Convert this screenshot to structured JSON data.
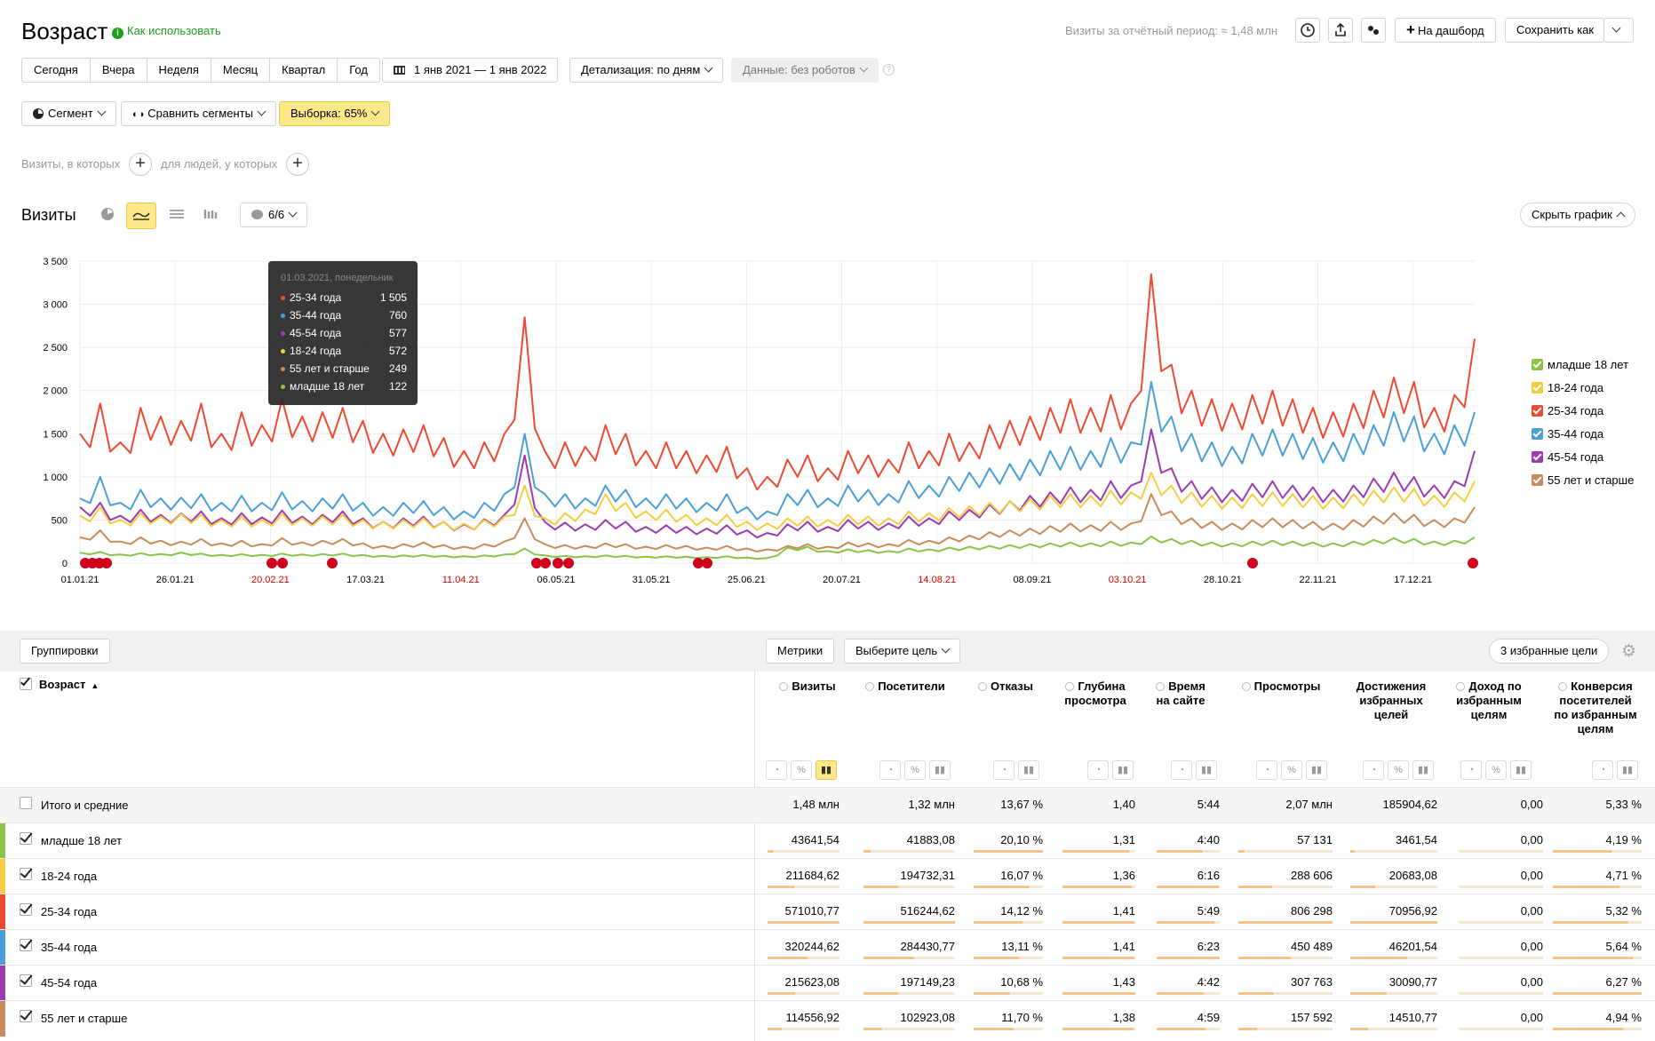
{
  "header": {
    "title": "Возраст",
    "how_to_use": "Как использовать",
    "visits_summary": "Визиты за отчётный период: ≈ 1,48 млн",
    "to_dashboard": "На дашборд",
    "save_as": "Сохранить как"
  },
  "period_tabs": [
    "Сегодня",
    "Вчера",
    "Неделя",
    "Месяц",
    "Квартал",
    "Год"
  ],
  "date_range": "1 янв 2021 — 1 янв 2022",
  "detail": "Детализация: по дням",
  "data_filter": "Данные: без роботов",
  "segment": "Сегмент",
  "compare_segments": "Сравнить сегменты",
  "sample": "Выборка: 65%",
  "filter": {
    "visits_where": "Визиты, в которых",
    "people_where": "для людей, у которых"
  },
  "chart_header": {
    "title": "Визиты",
    "series_count": "6/6",
    "hide_chart": "Скрыть график"
  },
  "colors": {
    "accent": "#fde98a",
    "green": "#1e9e1e"
  },
  "tooltip": {
    "date": "01.03.2021, понедельник",
    "rows": [
      {
        "label": "25-34 года",
        "value": "1 505",
        "color": "#ee4931"
      },
      {
        "label": "35-44 года",
        "value": "760",
        "color": "#4b9fd9"
      },
      {
        "label": "45-54 года",
        "value": "577",
        "color": "#9c3bb0"
      },
      {
        "label": "18-24 года",
        "value": "572",
        "color": "#f5cd43"
      },
      {
        "label": "55 лет и старше",
        "value": "249",
        "color": "#c88b5a"
      },
      {
        "label": "младше 18 лет",
        "value": "122",
        "color": "#8bc34a"
      }
    ]
  },
  "chart_data": {
    "type": "line",
    "ylim": [
      0,
      3500
    ],
    "y_ticks": [
      "3 500",
      "3 000",
      "2 500",
      "2 000",
      "1 500",
      "1 000",
      "500",
      "0"
    ],
    "x_ticks": [
      {
        "label": "01.01.21",
        "weekend": false
      },
      {
        "label": "26.01.21",
        "weekend": false
      },
      {
        "label": "20.02.21",
        "weekend": true
      },
      {
        "label": "17.03.21",
        "weekend": false
      },
      {
        "label": "11.04.21",
        "weekend": true
      },
      {
        "label": "06.05.21",
        "weekend": false
      },
      {
        "label": "31.05.21",
        "weekend": false
      },
      {
        "label": "25.06.21",
        "weekend": false
      },
      {
        "label": "20.07.21",
        "weekend": false
      },
      {
        "label": "14.08.21",
        "weekend": true
      },
      {
        "label": "08.09.21",
        "weekend": false
      },
      {
        "label": "03.10.21",
        "weekend": true
      },
      {
        "label": "28.10.21",
        "weekend": false
      },
      {
        "label": "22.11.21",
        "weekend": false
      },
      {
        "label": "17.12.21",
        "weekend": false
      }
    ],
    "series": [
      {
        "name": "25-34 года",
        "color": "#ee4931",
        "values": [
          1500,
          1850,
          1400,
          1800,
          1700,
          1650,
          1850,
          1500,
          1750,
          1600,
          1900,
          1700,
          1750,
          1800,
          1650,
          1500,
          1550,
          1600,
          1450,
          1300,
          1400,
          1500,
          2850,
          1300,
          1400,
          1350,
          1600,
          1500,
          1300,
          1400,
          1300,
          1250,
          1350,
          1100,
          1000,
          1200,
          1250,
          1100,
          1300,
          1250,
          1200,
          1400,
          1300,
          1500,
          1400,
          1600,
          1650,
          1700,
          1800,
          1900,
          1800,
          1950,
          1850,
          3350,
          2300,
          2000,
          1900,
          1850,
          1950,
          2000,
          1900,
          1800,
          1750,
          1850,
          2000,
          2150,
          2100,
          1800,
          1950,
          2600
        ]
      },
      {
        "name": "35-44 года",
        "color": "#4b9fd9",
        "values": [
          750,
          1000,
          700,
          850,
          750,
          760,
          800,
          700,
          780,
          700,
          820,
          720,
          750,
          800,
          700,
          650,
          700,
          720,
          650,
          600,
          700,
          800,
          1500,
          800,
          800,
          750,
          900,
          850,
          750,
          800,
          750,
          700,
          800,
          650,
          600,
          800,
          850,
          750,
          900,
          850,
          800,
          950,
          900,
          1000,
          1050,
          1100,
          1150,
          1200,
          1300,
          1350,
          1300,
          1450,
          1400,
          2100,
          1700,
          1500,
          1400,
          1350,
          1500,
          1550,
          1500,
          1450,
          1400,
          1500,
          1600,
          1750,
          1700,
          1500,
          1600,
          1750
        ]
      },
      {
        "name": "45-54 года",
        "color": "#9c3bb0",
        "values": [
          650,
          700,
          550,
          620,
          560,
          577,
          600,
          520,
          580,
          530,
          610,
          540,
          560,
          600,
          520,
          480,
          520,
          540,
          480,
          450,
          510,
          560,
          1250,
          480,
          470,
          450,
          500,
          480,
          420,
          440,
          420,
          400,
          440,
          380,
          350,
          450,
          480,
          420,
          500,
          480,
          460,
          540,
          520,
          600,
          620,
          680,
          720,
          780,
          820,
          880,
          850,
          950,
          900,
          1550,
          1100,
          950,
          880,
          850,
          920,
          950,
          900,
          880,
          850,
          900,
          980,
          1050,
          1000,
          900,
          950,
          1300
        ]
      },
      {
        "name": "18-24 года",
        "color": "#f5cd43",
        "values": [
          550,
          650,
          500,
          580,
          540,
          572,
          560,
          500,
          540,
          500,
          570,
          520,
          540,
          560,
          500,
          480,
          500,
          520,
          480,
          460,
          500,
          540,
          900,
          520,
          580,
          620,
          800,
          700,
          600,
          620,
          560,
          520,
          560,
          480,
          460,
          520,
          540,
          500,
          560,
          540,
          520,
          600,
          580,
          640,
          660,
          700,
          720,
          740,
          780,
          800,
          780,
          840,
          820,
          1050,
          900,
          820,
          780,
          760,
          800,
          820,
          800,
          780,
          760,
          800,
          840,
          880,
          860,
          780,
          820,
          950
        ]
      },
      {
        "name": "55 лет и старше",
        "color": "#c88b5a",
        "values": [
          300,
          380,
          250,
          300,
          260,
          249,
          280,
          230,
          260,
          220,
          290,
          240,
          260,
          280,
          230,
          200,
          220,
          240,
          210,
          190,
          220,
          250,
          520,
          220,
          210,
          200,
          230,
          220,
          190,
          210,
          200,
          180,
          200,
          170,
          160,
          200,
          220,
          190,
          240,
          230,
          220,
          270,
          260,
          300,
          320,
          360,
          380,
          400,
          430,
          460,
          440,
          480,
          460,
          800,
          600,
          520,
          480,
          460,
          500,
          520,
          500,
          480,
          460,
          500,
          540,
          580,
          560,
          500,
          520,
          650
        ]
      },
      {
        "name": "младше 18 лет",
        "color": "#8bc34a",
        "values": [
          120,
          130,
          100,
          115,
          105,
          122,
          110,
          95,
          105,
          95,
          110,
          100,
          105,
          110,
          95,
          85,
          90,
          95,
          85,
          80,
          90,
          100,
          170,
          90,
          85,
          80,
          90,
          85,
          75,
          80,
          75,
          70,
          80,
          65,
          60,
          180,
          190,
          140,
          160,
          150,
          140,
          170,
          160,
          180,
          190,
          200,
          210,
          220,
          230,
          240,
          230,
          250,
          240,
          310,
          280,
          260,
          240,
          230,
          250,
          260,
          250,
          240,
          230,
          250,
          270,
          290,
          280,
          250,
          260,
          300
        ]
      }
    ]
  },
  "legend": [
    {
      "label": "младше 18 лет",
      "color": "#8bc34a"
    },
    {
      "label": "18-24 года",
      "color": "#f5cd43"
    },
    {
      "label": "25-34 года",
      "color": "#ee4931"
    },
    {
      "label": "35-44 года",
      "color": "#4b9fd9"
    },
    {
      "label": "45-54 года",
      "color": "#9c3bb0"
    },
    {
      "label": "55 лет и старше",
      "color": "#c88b5a"
    }
  ],
  "table": {
    "groupings": "Группировки",
    "metrics": "Метрики",
    "choose_goal": "Выберите цель",
    "favorite_goals": "3 избранные цели",
    "dimension_header": "Возраст",
    "columns": [
      "Визиты",
      "Посетители",
      "Отказы",
      "Глубина просмотра",
      "Время на сайте",
      "Просмотры",
      "Достижения избранных целей",
      "Доход по избранным целям",
      "Конверсия посетителей по избранным целям"
    ],
    "totals": {
      "name": "Итого и средние",
      "values": [
        "1,48 млн",
        "1,32 млн",
        "13,67 %",
        "1,40",
        "5:44",
        "2,07 млн",
        "185904,62",
        "0,00",
        "5,33 %"
      ]
    },
    "rows": [
      {
        "name": "младше 18 лет",
        "color": "#8bc34a",
        "values": [
          "43641,54",
          "41883,08",
          "20,10 %",
          "1,31",
          "4:40",
          "57 131",
          "3461,54",
          "0,00",
          "4,19 %"
        ],
        "shares": [
          0.08,
          0.08,
          1.0,
          0.92,
          0.73,
          0.07,
          0.05,
          0,
          0.66
        ]
      },
      {
        "name": "18-24 года",
        "color": "#f5cd43",
        "values": [
          "211684,62",
          "194732,31",
          "16,07 %",
          "1,36",
          "6:16",
          "288 606",
          "20683,08",
          "0,00",
          "4,71 %"
        ],
        "shares": [
          0.37,
          0.38,
          0.8,
          0.95,
          0.98,
          0.36,
          0.29,
          0,
          0.75
        ]
      },
      {
        "name": "25-34 года",
        "color": "#ee4931",
        "values": [
          "571010,77",
          "516244,62",
          "14,12 %",
          "1,41",
          "5:49",
          "806 298",
          "70956,92",
          "0,00",
          "5,32 %"
        ],
        "shares": [
          1.0,
          1.0,
          0.7,
          0.99,
          0.91,
          1.0,
          1.0,
          0,
          0.85
        ]
      },
      {
        "name": "35-44 года",
        "color": "#4b9fd9",
        "values": [
          "320244,62",
          "284430,77",
          "13,11 %",
          "1,41",
          "6:23",
          "450 489",
          "46201,54",
          "0,00",
          "5,64 %"
        ],
        "shares": [
          0.56,
          0.55,
          0.65,
          0.99,
          1.0,
          0.56,
          0.65,
          0,
          0.9
        ]
      },
      {
        "name": "45-54 года",
        "color": "#9c3bb0",
        "values": [
          "215623,08",
          "197149,23",
          "10,68 %",
          "1,43",
          "4:42",
          "307 763",
          "30090,77",
          "0,00",
          "6,27 %"
        ],
        "shares": [
          0.38,
          0.38,
          0.53,
          1.0,
          0.74,
          0.38,
          0.42,
          0,
          1.0
        ]
      },
      {
        "name": "55 лет и старше",
        "color": "#c88b5a",
        "values": [
          "114556,92",
          "102923,08",
          "11,70 %",
          "1,38",
          "4:59",
          "157 592",
          "14510,77",
          "0,00",
          "4,94 %"
        ],
        "shares": [
          0.2,
          0.2,
          0.58,
          0.97,
          0.78,
          0.2,
          0.2,
          0,
          0.79
        ]
      }
    ]
  }
}
